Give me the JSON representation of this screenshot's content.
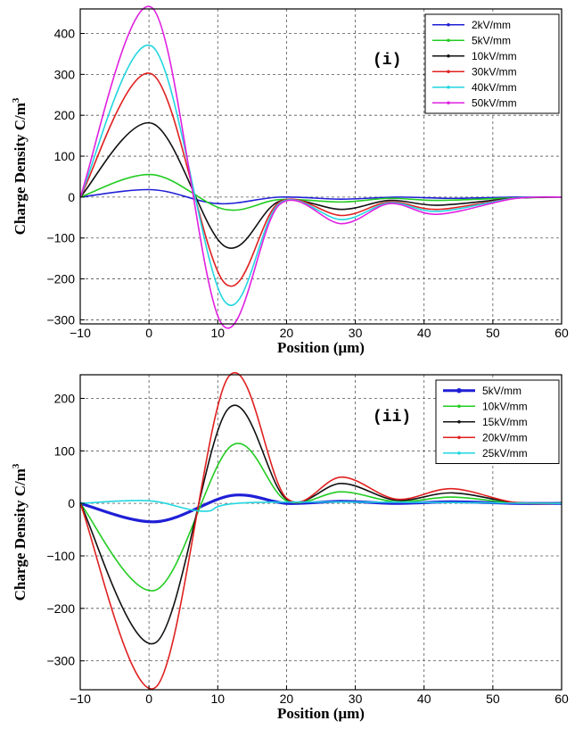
{
  "chart_data": [
    {
      "type": "line",
      "panel_label": "(i)",
      "xlabel": "Position (μm)",
      "ylabel": "Charge Density C/m",
      "ylabel_sup": "3",
      "xlim": [
        -10,
        60
      ],
      "ylim": [
        -310,
        460
      ],
      "xticks": [
        -10,
        0,
        10,
        20,
        30,
        40,
        50,
        60
      ],
      "yticks": [
        -300,
        -200,
        -100,
        0,
        100,
        200,
        300,
        400
      ],
      "grid": true,
      "legend_position": "top-right",
      "series": [
        {
          "name": "2kV/mm",
          "color": "#1f1fd6",
          "peaks": [
            [
              0.5,
              18
            ],
            [
              10,
              -16
            ],
            [
              19,
              0
            ],
            [
              28,
              -5
            ],
            [
              36,
              0
            ],
            [
              44,
              -3
            ],
            [
              53,
              0
            ]
          ]
        },
        {
          "name": "5kV/mm",
          "color": "#22cc22",
          "peaks": [
            [
              0.5,
              55
            ],
            [
              11,
              -30
            ],
            [
              19,
              -6
            ],
            [
              28,
              -12
            ],
            [
              35,
              -3
            ],
            [
              42,
              -8
            ],
            [
              53,
              -2
            ]
          ]
        },
        {
          "name": "10kV/mm",
          "color": "#111111",
          "peaks": [
            [
              0.5,
              180
            ],
            [
              11,
              -120
            ],
            [
              19,
              -10
            ],
            [
              28,
              -30
            ],
            [
              35,
              -8
            ],
            [
              42,
              -20
            ],
            [
              53,
              -3
            ]
          ]
        },
        {
          "name": "30kV/mm",
          "color": "#e02020",
          "peaks": [
            [
              0.5,
              300
            ],
            [
              11,
              -210
            ],
            [
              19,
              -12
            ],
            [
              28,
              -45
            ],
            [
              35,
              -12
            ],
            [
              42,
              -30
            ],
            [
              53,
              -3
            ]
          ]
        },
        {
          "name": "40kV/mm",
          "color": "#22d6e0",
          "peaks": [
            [
              0.5,
              368
            ],
            [
              11,
              -255
            ],
            [
              19,
              -15
            ],
            [
              28,
              -55
            ],
            [
              35,
              -14
            ],
            [
              42,
              -35
            ],
            [
              53,
              -3
            ]
          ]
        },
        {
          "name": "50kV/mm",
          "color": "#e020e0",
          "peaks": [
            [
              0.5,
              462
            ],
            [
              10.5,
              -308
            ],
            [
              19,
              -18
            ],
            [
              28,
              -65
            ],
            [
              35,
              -16
            ],
            [
              42,
              -42
            ],
            [
              53,
              -4
            ]
          ]
        }
      ]
    },
    {
      "type": "line",
      "panel_label": "(ii)",
      "xlabel": "Position (μm)",
      "ylabel": "Charge Density C/m",
      "ylabel_sup": "3",
      "xlim": [
        -10,
        60
      ],
      "ylim": [
        -355,
        245
      ],
      "xticks": [
        -10,
        0,
        10,
        20,
        30,
        40,
        50,
        60
      ],
      "yticks": [
        -300,
        -200,
        -100,
        0,
        100,
        200
      ],
      "grid": true,
      "legend_position": "top-right",
      "series": [
        {
          "name": "5kV/mm",
          "color": "#1f1fd6",
          "peaks": [
            [
              1,
              -35
            ],
            [
              12,
              15
            ],
            [
              20,
              0
            ],
            [
              28,
              4
            ],
            [
              36,
              0
            ],
            [
              44,
              3
            ],
            [
              53,
              0
            ]
          ]
        },
        {
          "name": "10kV/mm",
          "color": "#22cc22",
          "peaks": [
            [
              1,
              -165
            ],
            [
              12,
              110
            ],
            [
              20,
              5
            ],
            [
              28,
              22
            ],
            [
              36,
              3
            ],
            [
              44,
              12
            ],
            [
              53,
              1
            ]
          ]
        },
        {
          "name": "15kV/mm",
          "color": "#111111",
          "peaks": [
            [
              1,
              -265
            ],
            [
              11.5,
              180
            ],
            [
              20,
              8
            ],
            [
              28,
              38
            ],
            [
              36,
              6
            ],
            [
              44,
              20
            ],
            [
              53,
              2
            ]
          ]
        },
        {
          "name": "20kV/mm",
          "color": "#e02020",
          "peaks": [
            [
              1,
              -350
            ],
            [
              11.5,
              240
            ],
            [
              20,
              10
            ],
            [
              28,
              50
            ],
            [
              36,
              8
            ],
            [
              44,
              28
            ],
            [
              53,
              2
            ]
          ]
        },
        {
          "name": "25kV/mm",
          "color": "#22d6e0",
          "peaks": [
            [
              0,
              5
            ],
            [
              8,
              -15
            ],
            [
              16,
              2
            ]
          ]
        }
      ]
    }
  ]
}
